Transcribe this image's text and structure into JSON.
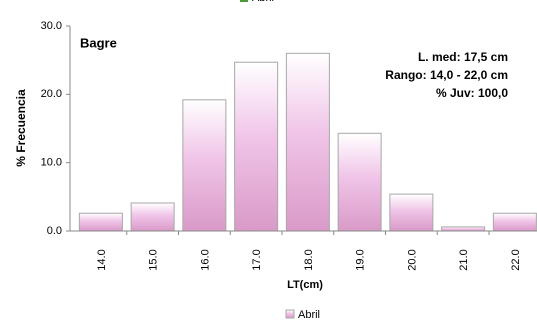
{
  "chart_data": {
    "type": "bar",
    "title": "Bagre",
    "annotations": [
      "L. med: 17,5 cm",
      "Rango: 14,0 - 22,0 cm",
      "% Juv: 100,0"
    ],
    "xlabel": "LT(cm)",
    "ylabel": "% Frecuencia",
    "categories": [
      "14.0",
      "15.0",
      "16.0",
      "17.0",
      "18.0",
      "19.0",
      "20.0",
      "21.0",
      "22.0"
    ],
    "series": [
      {
        "name": "Abril",
        "color": "#d99ac8",
        "values": [
          2.6,
          4.1,
          19.2,
          24.7,
          26.0,
          14.3,
          5.4,
          0.6,
          2.6
        ]
      }
    ],
    "ylim": [
      0,
      30
    ],
    "yticks": [
      {
        "value": 0,
        "label": "0.0"
      },
      {
        "value": 10,
        "label": "10.0"
      },
      {
        "value": 20,
        "label": "20.0"
      },
      {
        "value": 30,
        "label": "30.0"
      }
    ],
    "legend": "bottom"
  }
}
